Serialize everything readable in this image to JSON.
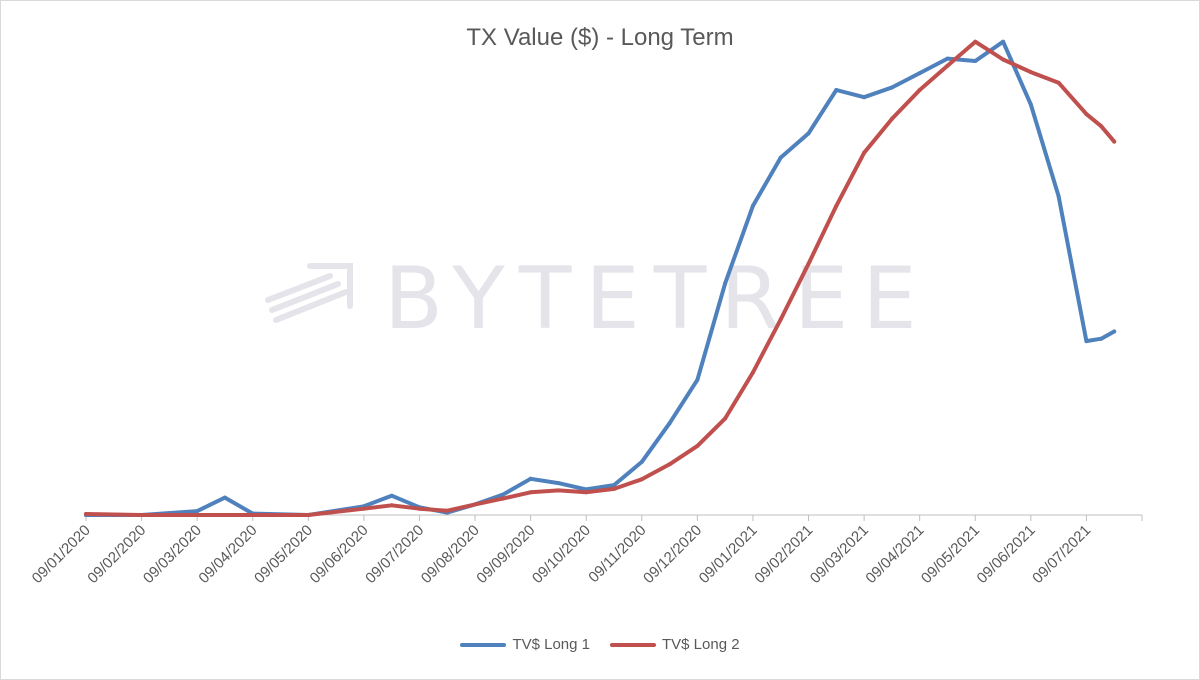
{
  "watermark": {
    "text": "BYTETREE"
  },
  "colors": {
    "series1": "#4f81bd",
    "series2": "#c0504d",
    "axis": "#bfbfbf",
    "text": "#595959"
  },
  "chart_data": {
    "type": "line",
    "title": "TX Value ($) - Long Term",
    "xlabel": "",
    "ylabel": "",
    "y_axis_visible": false,
    "grid": false,
    "legend_position": "bottom",
    "x_ticks": [
      "09/01/2020",
      "09/02/2020",
      "09/03/2020",
      "09/04/2020",
      "09/05/2020",
      "09/06/2020",
      "09/07/2020",
      "09/08/2020",
      "09/09/2020",
      "09/10/2020",
      "09/11/2020",
      "09/12/2020",
      "09/01/2021",
      "09/02/2021",
      "09/03/2021",
      "09/04/2021",
      "09/05/2021",
      "09/06/2021",
      "09/07/2021"
    ],
    "ylim": [
      0,
      100
    ],
    "series": [
      {
        "name": "TV$ Long 1",
        "color": "#4f81bd",
        "points": [
          [
            "09/01/2020",
            0
          ],
          [
            "09/02/2020",
            0
          ],
          [
            "09/03/2020",
            0.8
          ],
          [
            "24/03/2020",
            3.6
          ],
          [
            "09/04/2020",
            0.3
          ],
          [
            "09/05/2020",
            0
          ],
          [
            "09/06/2020",
            1.8
          ],
          [
            "24/06/2020",
            4
          ],
          [
            "09/07/2020",
            1.6
          ],
          [
            "24/07/2020",
            0.5
          ],
          [
            "09/08/2020",
            2.2
          ],
          [
            "24/08/2020",
            4.2
          ],
          [
            "09/09/2020",
            7.5
          ],
          [
            "24/09/2020",
            6.6
          ],
          [
            "09/10/2020",
            5.3
          ],
          [
            "24/10/2020",
            6.2
          ],
          [
            "09/11/2020",
            11
          ],
          [
            "24/11/2020",
            19
          ],
          [
            "09/12/2020",
            28
          ],
          [
            "24/12/2020",
            48
          ],
          [
            "09/01/2021",
            64
          ],
          [
            "24/01/2021",
            74
          ],
          [
            "09/02/2021",
            79
          ],
          [
            "24/02/2021",
            88
          ],
          [
            "09/03/2021",
            86.5
          ],
          [
            "24/03/2021",
            88.5
          ],
          [
            "09/04/2021",
            91.5
          ],
          [
            "24/04/2021",
            94.5
          ],
          [
            "09/05/2021",
            94
          ],
          [
            "24/05/2021",
            98
          ],
          [
            "09/06/2021",
            85
          ],
          [
            "24/06/2021",
            66
          ],
          [
            "09/07/2021",
            36
          ],
          [
            "17/07/2021",
            36.5
          ],
          [
            "24/07/2021",
            38
          ]
        ]
      },
      {
        "name": "TV$ Long 2",
        "color": "#c0504d",
        "points": [
          [
            "09/01/2020",
            0.2
          ],
          [
            "09/02/2020",
            0
          ],
          [
            "09/03/2020",
            0
          ],
          [
            "09/04/2020",
            0
          ],
          [
            "09/05/2020",
            0
          ],
          [
            "09/06/2020",
            1.3
          ],
          [
            "24/06/2020",
            2
          ],
          [
            "09/07/2020",
            1.3
          ],
          [
            "24/07/2020",
            0.9
          ],
          [
            "09/08/2020",
            2.2
          ],
          [
            "24/08/2020",
            3.4
          ],
          [
            "09/09/2020",
            4.7
          ],
          [
            "24/09/2020",
            5.1
          ],
          [
            "09/10/2020",
            4.7
          ],
          [
            "24/10/2020",
            5.4
          ],
          [
            "09/11/2020",
            7.4
          ],
          [
            "24/11/2020",
            10.5
          ],
          [
            "09/12/2020",
            14.3
          ],
          [
            "24/12/2020",
            20
          ],
          [
            "09/01/2021",
            29.5
          ],
          [
            "24/01/2021",
            40.5
          ],
          [
            "09/02/2021",
            52
          ],
          [
            "24/02/2021",
            64
          ],
          [
            "09/03/2021",
            75
          ],
          [
            "24/03/2021",
            82
          ],
          [
            "09/04/2021",
            88
          ],
          [
            "24/04/2021",
            93
          ],
          [
            "09/05/2021",
            98
          ],
          [
            "24/05/2021",
            94.3
          ],
          [
            "09/06/2021",
            91.7
          ],
          [
            "24/06/2021",
            89.5
          ],
          [
            "09/07/2021",
            83
          ],
          [
            "17/07/2021",
            80.5
          ],
          [
            "24/07/2021",
            77.3
          ]
        ]
      }
    ]
  }
}
